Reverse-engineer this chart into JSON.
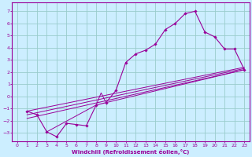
{
  "bg_color": "#cceeff",
  "grid_color": "#99cccc",
  "line_color": "#990099",
  "marker_color": "#990099",
  "xlabel": "Windchill (Refroidissement éolien,°C)",
  "xlabel_color": "#990099",
  "tick_color": "#990099",
  "spine_color": "#990099",
  "xlim": [
    -0.5,
    23.5
  ],
  "ylim": [
    -3.7,
    7.7
  ],
  "yticks": [
    -3,
    -2,
    -1,
    0,
    1,
    2,
    3,
    4,
    5,
    6,
    7
  ],
  "xticks": [
    0,
    1,
    2,
    3,
    4,
    5,
    6,
    7,
    8,
    9,
    10,
    11,
    12,
    13,
    14,
    15,
    16,
    17,
    18,
    19,
    20,
    21,
    22,
    23
  ],
  "line1_x": [
    1,
    2,
    3,
    4,
    5,
    6,
    7,
    8,
    9,
    10,
    11,
    12,
    13,
    14,
    15,
    16,
    17,
    18,
    19,
    20,
    21,
    22,
    23
  ],
  "line1_y": [
    -1.2,
    -1.5,
    -2.9,
    -3.3,
    -2.2,
    -2.3,
    -2.4,
    -0.7,
    -0.5,
    0.5,
    2.8,
    3.5,
    3.8,
    4.3,
    5.5,
    6.0,
    6.8,
    7.0,
    5.3,
    4.9,
    3.9,
    3.9,
    2.2
  ],
  "line2_x": [
    1,
    23
  ],
  "line2_y": [
    -1.8,
    2.2
  ],
  "line3_x": [
    1,
    23
  ],
  "line3_y": [
    -1.2,
    2.4
  ],
  "line4_x": [
    3,
    8,
    8.5,
    9,
    23
  ],
  "line4_y": [
    -2.9,
    -0.7,
    0.3,
    -0.5,
    2.2
  ],
  "line5_x": [
    1,
    23
  ],
  "line5_y": [
    -1.5,
    2.3
  ]
}
